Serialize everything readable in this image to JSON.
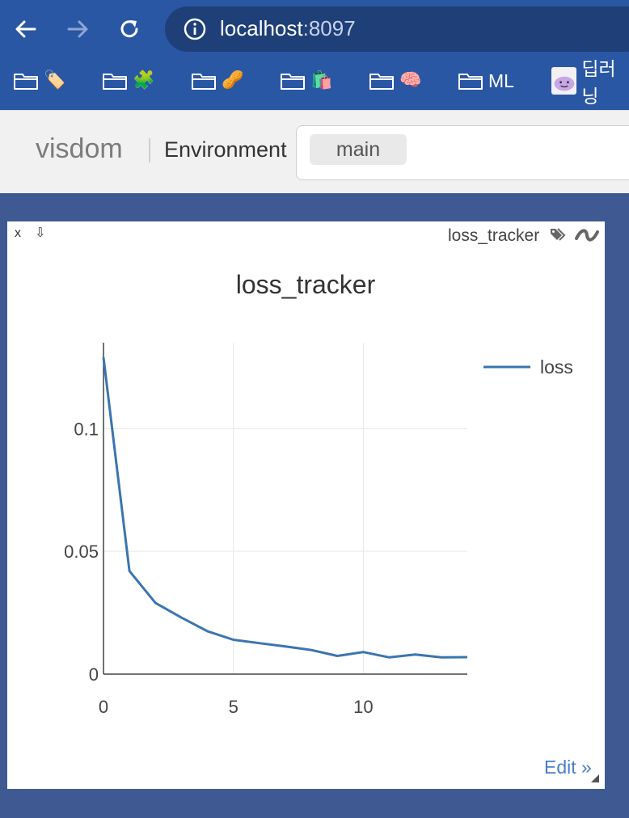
{
  "browser": {
    "url_host": "localhost",
    "url_port": ":8097",
    "bookmarks": [
      {
        "emoji": "🏷️",
        "label": ""
      },
      {
        "emoji": "🧩",
        "label": ""
      },
      {
        "emoji": "🥜",
        "label": ""
      },
      {
        "emoji": "🛍️",
        "label": ""
      },
      {
        "emoji": "🧠",
        "label": ""
      },
      {
        "emoji": "",
        "label": "ML"
      }
    ],
    "last_bookmark_label": "딥러닝"
  },
  "header": {
    "logo": "visdom",
    "env_label": "Environment",
    "env_tag": "main"
  },
  "pane": {
    "close_label": "x",
    "save_label": "⇩",
    "title": "loss_tracker",
    "edit_label": "Edit »"
  },
  "chart_data": {
    "type": "line",
    "title": "loss_tracker",
    "xlabel": "",
    "ylabel": "",
    "xlim": [
      0,
      14
    ],
    "ylim": [
      0,
      0.135
    ],
    "xticks": [
      0,
      5,
      10
    ],
    "yticks": [
      0,
      0.05,
      0.1
    ],
    "xtick_labels": [
      "0",
      "5",
      "10"
    ],
    "ytick_labels": [
      "0",
      "0.05",
      "0.1"
    ],
    "grid": true,
    "legend": "top-right",
    "series": [
      {
        "name": "loss",
        "color": "#3b75af",
        "x": [
          0,
          1,
          2,
          3,
          4,
          5,
          6,
          7,
          8,
          9,
          10,
          11,
          12,
          13,
          14
        ],
        "y": [
          0.129,
          0.042,
          0.029,
          0.023,
          0.0175,
          0.014,
          0.0126,
          0.0113,
          0.0098,
          0.0074,
          0.009,
          0.0068,
          0.008,
          0.0068,
          0.0069
        ]
      }
    ]
  }
}
